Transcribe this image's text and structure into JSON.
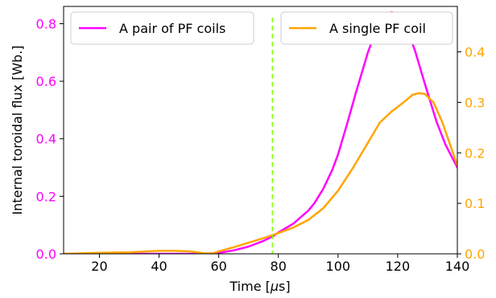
{
  "chart_data": {
    "type": "line",
    "xlabel": "Time [$\\mu$s]",
    "xlabel_parts": [
      "Time [",
      "μ",
      "s]"
    ],
    "ylabel_left": "Internal toroidal flux [Wb.]",
    "xlim": [
      8,
      140
    ],
    "ylim_left": [
      0,
      0.86
    ],
    "ylim_right": [
      0,
      0.49
    ],
    "x_ticks": [
      20,
      40,
      60,
      80,
      100,
      120,
      140
    ],
    "x_tick_labels": [
      "20",
      "40",
      "60",
      "80",
      "100",
      "120",
      "140"
    ],
    "y_ticks_left": [
      0.0,
      0.2,
      0.4,
      0.6,
      0.8
    ],
    "y_tick_labels_left": [
      "0.0",
      "0.2",
      "0.4",
      "0.6",
      "0.8"
    ],
    "y_ticks_right": [
      0.0,
      0.1,
      0.2,
      0.3,
      0.4
    ],
    "y_tick_labels_right": [
      "0.0",
      "0.1",
      "0.2",
      "0.3",
      "0.4"
    ],
    "grid": false,
    "vertical_marker": {
      "x": 78,
      "color": "#7fff00",
      "style": "dashed"
    },
    "series": [
      {
        "name": "A pair of PF coils",
        "axis": "left",
        "color": "#ff00ff",
        "x": [
          8,
          20,
          30,
          40,
          45,
          50,
          55,
          60,
          65,
          70,
          75,
          78,
          80,
          85,
          90,
          92,
          95,
          98,
          100,
          103,
          106,
          110,
          113,
          116,
          118,
          120,
          122,
          124,
          126,
          128,
          130,
          133,
          136,
          140
        ],
        "y": [
          0.0,
          0.0,
          0.0,
          0.0,
          0.0,
          0.0,
          0.0,
          0.003,
          0.012,
          0.025,
          0.045,
          0.06,
          0.074,
          0.105,
          0.15,
          0.175,
          0.225,
          0.29,
          0.345,
          0.45,
          0.56,
          0.7,
          0.785,
          0.835,
          0.84,
          0.835,
          0.8,
          0.76,
          0.7,
          0.63,
          0.56,
          0.46,
          0.38,
          0.3
        ]
      },
      {
        "name": "A single PF coil",
        "axis": "right",
        "color": "#ffa500",
        "x": [
          8,
          20,
          30,
          40,
          45,
          50,
          53,
          55,
          58,
          60,
          65,
          70,
          75,
          78,
          80,
          85,
          90,
          95,
          100,
          105,
          110,
          114,
          118,
          122,
          125,
          127,
          129,
          132,
          135,
          140
        ],
        "y": [
          0.0,
          0.002,
          0.003,
          0.006,
          0.006,
          0.005,
          0.003,
          0.001,
          0.001,
          0.005,
          0.013,
          0.022,
          0.031,
          0.037,
          0.041,
          0.052,
          0.067,
          0.09,
          0.125,
          0.17,
          0.22,
          0.26,
          0.282,
          0.3,
          0.315,
          0.318,
          0.317,
          0.3,
          0.26,
          0.175
        ]
      }
    ]
  }
}
